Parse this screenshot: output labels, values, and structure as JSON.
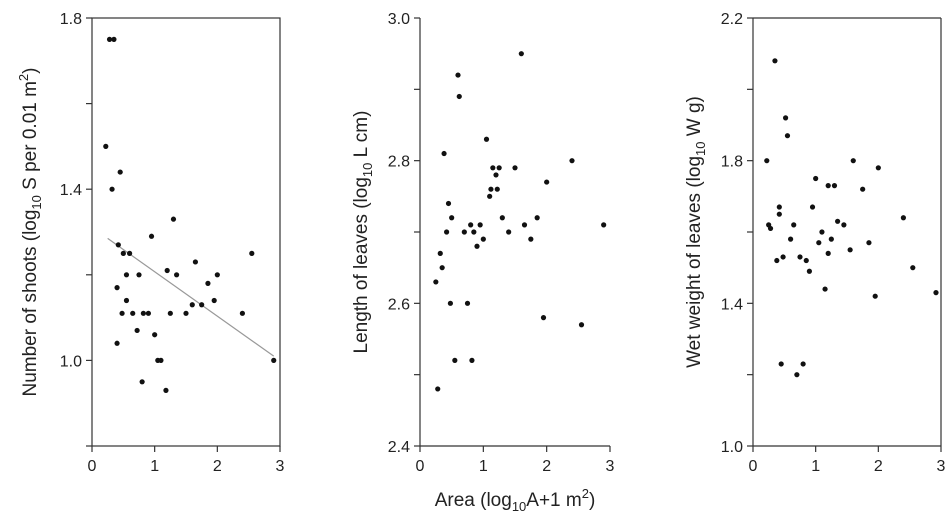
{
  "chart_data": [
    {
      "type": "scatter",
      "id": "shoots",
      "ylabel": "Number of shoots (log10 S per 0.01 m2)",
      "ylabel_parts": {
        "a": "Number of shoots (log",
        "sub": "10",
        "b": " S per 0.01 m",
        "sup": "2",
        "c": ")"
      },
      "xlim": [
        0,
        3
      ],
      "ylim": [
        0.8,
        1.8
      ],
      "xticks": [
        "0",
        "1",
        "2",
        "3"
      ],
      "yticks": [
        "1.0",
        "1.4",
        "1.8"
      ],
      "trend": {
        "x": [
          0.25,
          2.9
        ],
        "y": [
          1.285,
          1.01
        ]
      },
      "x": [
        0.22,
        0.28,
        0.32,
        0.35,
        0.4,
        0.4,
        0.42,
        0.45,
        0.48,
        0.5,
        0.55,
        0.55,
        0.6,
        0.65,
        0.72,
        0.75,
        0.8,
        0.82,
        0.9,
        0.95,
        1.0,
        1.05,
        1.1,
        1.18,
        1.2,
        1.25,
        1.3,
        1.35,
        1.5,
        1.6,
        1.65,
        1.75,
        1.85,
        1.95,
        2.0,
        2.4,
        2.55,
        2.9
      ],
      "y": [
        1.5,
        1.75,
        1.4,
        1.75,
        1.04,
        1.17,
        1.27,
        1.44,
        1.11,
        1.25,
        1.2,
        1.14,
        1.25,
        1.11,
        1.07,
        1.2,
        0.95,
        1.11,
        1.11,
        1.29,
        1.06,
        1.0,
        1.0,
        0.93,
        1.21,
        1.11,
        1.33,
        1.2,
        1.11,
        1.13,
        1.23,
        1.13,
        1.18,
        1.14,
        1.2,
        1.11,
        1.25,
        1.0
      ]
    },
    {
      "type": "scatter",
      "id": "length",
      "ylabel": "Length of leaves (log10 L cm)",
      "ylabel_parts": {
        "a": "Length of leaves (log",
        "sub": "10",
        "b": " L cm)",
        "sup": "",
        "c": ""
      },
      "xlabel": "Area (log10A+1 m2)",
      "xlabel_parts": {
        "a": "Area (log",
        "sub": "10",
        "b": "A+1 m",
        "sup": "2",
        "c": ")"
      },
      "xlim": [
        0,
        3
      ],
      "ylim": [
        2.4,
        3.0
      ],
      "xticks": [
        "0",
        "1",
        "2",
        "3"
      ],
      "yticks": [
        "2.4",
        "2.6",
        "2.8",
        "3.0"
      ],
      "x": [
        0.25,
        0.28,
        0.32,
        0.35,
        0.38,
        0.42,
        0.45,
        0.48,
        0.5,
        0.55,
        0.6,
        0.62,
        0.7,
        0.75,
        0.8,
        0.82,
        0.85,
        0.9,
        0.95,
        1.0,
        1.05,
        1.1,
        1.12,
        1.15,
        1.2,
        1.22,
        1.25,
        1.3,
        1.4,
        1.5,
        1.6,
        1.65,
        1.75,
        1.85,
        1.95,
        2.0,
        2.4,
        2.55,
        2.9
      ],
      "y": [
        2.63,
        2.48,
        2.67,
        2.65,
        2.81,
        2.7,
        2.74,
        2.6,
        2.72,
        2.52,
        2.92,
        2.89,
        2.7,
        2.6,
        2.71,
        2.52,
        2.7,
        2.68,
        2.71,
        2.69,
        2.83,
        2.75,
        2.76,
        2.79,
        2.78,
        2.76,
        2.79,
        2.72,
        2.7,
        2.79,
        2.95,
        2.71,
        2.69,
        2.72,
        2.58,
        2.77,
        2.8,
        2.57,
        2.71
      ]
    },
    {
      "type": "scatter",
      "id": "wetweight",
      "ylabel": "Wet weight of leaves (log10 W g)",
      "ylabel_parts": {
        "a": "Wet weight of leaves (log",
        "sub": "10",
        "b": " W g)",
        "sup": "",
        "c": ""
      },
      "xlim": [
        0,
        3
      ],
      "ylim": [
        1.0,
        2.2
      ],
      "xticks": [
        "0",
        "1",
        "2",
        "3"
      ],
      "yticks": [
        "1.0",
        "1.4",
        "1.8",
        "2.2"
      ],
      "x": [
        0.22,
        0.25,
        0.28,
        0.35,
        0.38,
        0.42,
        0.42,
        0.45,
        0.48,
        0.52,
        0.55,
        0.6,
        0.65,
        0.7,
        0.75,
        0.8,
        0.85,
        0.9,
        0.95,
        1.0,
        1.05,
        1.1,
        1.15,
        1.2,
        1.2,
        1.25,
        1.3,
        1.35,
        1.45,
        1.55,
        1.6,
        1.75,
        1.85,
        1.95,
        2.0,
        2.4,
        2.55,
        2.92
      ],
      "y": [
        1.8,
        1.62,
        1.61,
        2.08,
        1.52,
        1.65,
        1.67,
        1.23,
        1.53,
        1.92,
        1.87,
        1.58,
        1.62,
        1.2,
        1.53,
        1.23,
        1.52,
        1.49,
        1.67,
        1.75,
        1.57,
        1.6,
        1.44,
        1.73,
        1.54,
        1.58,
        1.73,
        1.63,
        1.62,
        1.55,
        1.8,
        1.72,
        1.57,
        1.42,
        1.78,
        1.64,
        1.5,
        1.43
      ]
    }
  ]
}
